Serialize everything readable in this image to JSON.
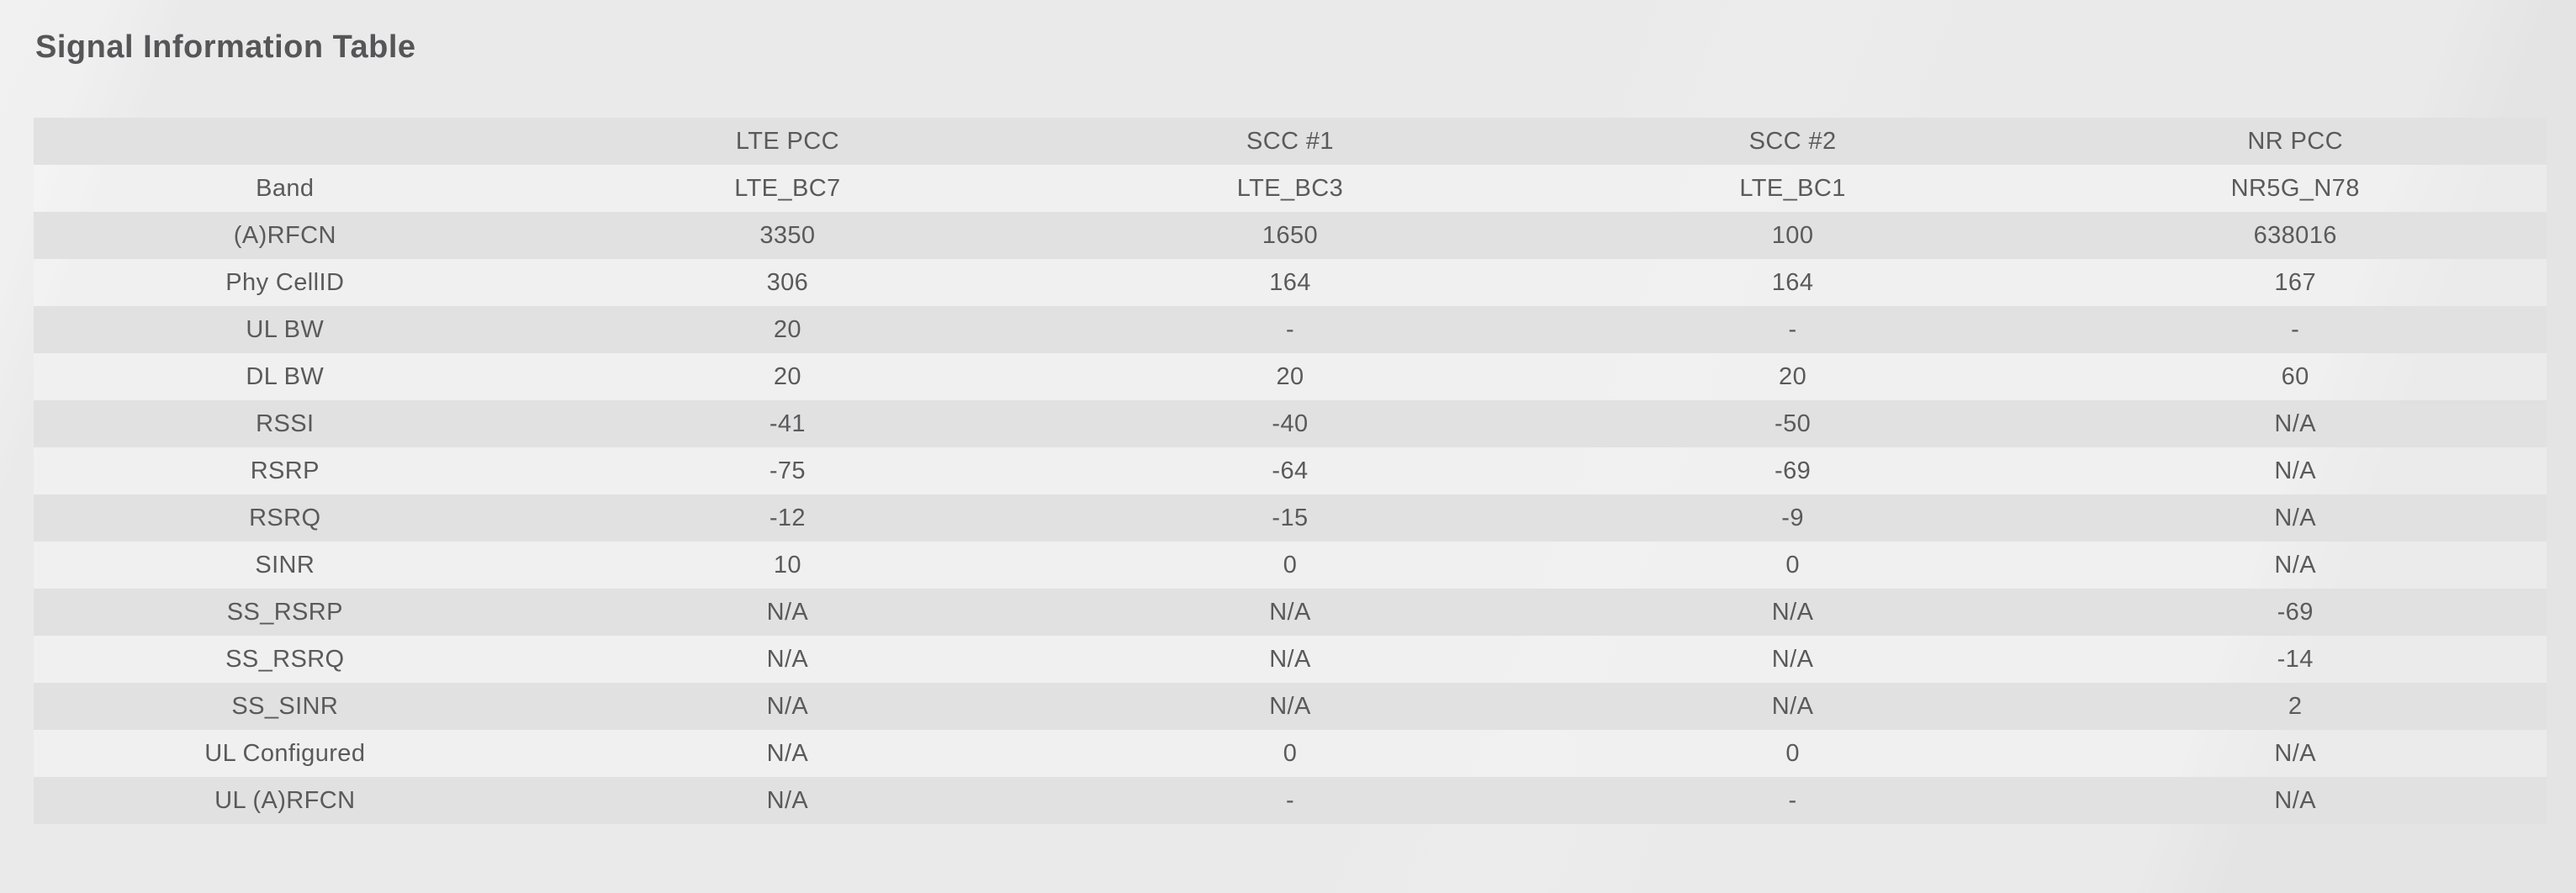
{
  "page": {
    "title": "Signal Information Table"
  },
  "colors": {
    "page_background": "#eaeaea",
    "background_light_band": "#f0f0f0",
    "background_dark_band": "#e4e4e4",
    "stripe_row": "#e1e1e1",
    "light_row": "rgba(255,255,255,0.28)",
    "text": "#5a5a5c",
    "title_text": "#565658"
  },
  "table": {
    "columns": [
      "",
      "LTE PCC",
      "SCC #1",
      "SCC #2",
      "NR PCC"
    ],
    "rows": [
      {
        "label": "Band",
        "values": [
          "LTE_BC7",
          "LTE_BC3",
          "LTE_BC1",
          "NR5G_N78"
        ]
      },
      {
        "label": "(A)RFCN",
        "values": [
          "3350",
          "1650",
          "100",
          "638016"
        ]
      },
      {
        "label": "Phy CellID",
        "values": [
          "306",
          "164",
          "164",
          "167"
        ]
      },
      {
        "label": "UL BW",
        "values": [
          "20",
          "-",
          "-",
          "-"
        ]
      },
      {
        "label": "DL BW",
        "values": [
          "20",
          "20",
          "20",
          "60"
        ]
      },
      {
        "label": "RSSI",
        "values": [
          "-41",
          "-40",
          "-50",
          "N/A"
        ]
      },
      {
        "label": "RSRP",
        "values": [
          "-75",
          "-64",
          "-69",
          "N/A"
        ]
      },
      {
        "label": "RSRQ",
        "values": [
          "-12",
          "-15",
          "-9",
          "N/A"
        ]
      },
      {
        "label": "SINR",
        "values": [
          "10",
          "0",
          "0",
          "N/A"
        ]
      },
      {
        "label": "SS_RSRP",
        "values": [
          "N/A",
          "N/A",
          "N/A",
          "-69"
        ]
      },
      {
        "label": "SS_RSRQ",
        "values": [
          "N/A",
          "N/A",
          "N/A",
          "-14"
        ]
      },
      {
        "label": "SS_SINR",
        "values": [
          "N/A",
          "N/A",
          "N/A",
          "2"
        ]
      },
      {
        "label": "UL Configured",
        "values": [
          "N/A",
          "0",
          "0",
          "N/A"
        ]
      },
      {
        "label": "UL (A)RFCN",
        "values": [
          "N/A",
          "-",
          "-",
          "N/A"
        ]
      }
    ]
  }
}
